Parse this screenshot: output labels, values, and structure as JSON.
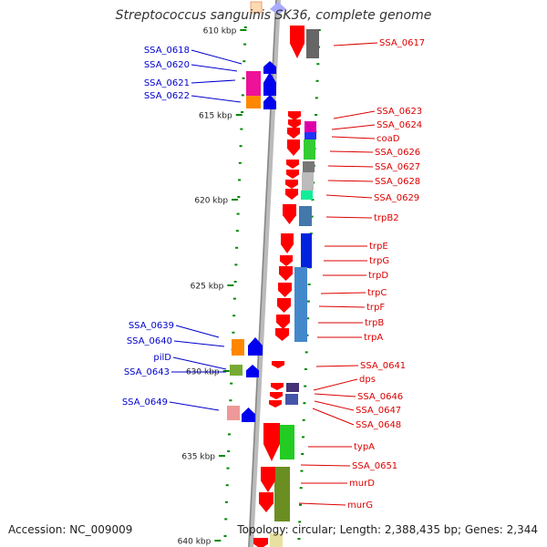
{
  "title": "Streptococcus sanguinis SK36, complete genome",
  "footer": {
    "accession": "Accession: NC_009009",
    "topology": "Topology: circular; Length: 2,388,435 bp; Genes: 2,344"
  },
  "colors": {
    "forward_label": "#0000cc",
    "reverse_label": "#dd0000",
    "backbone": "#999999",
    "tick": "#008800",
    "forward_arrow": "#0000ee",
    "reverse_arrow": "#ff0000"
  },
  "scale_labels": [
    "610 kbp",
    "615 kbp",
    "620 kbp",
    "625 kbp",
    "630 kbp",
    "635 kbp",
    "640 kbp"
  ],
  "forward_genes": [
    "SSA_0618",
    "SSA_0620",
    "SSA_0621",
    "SSA_0622",
    "SSA_0639",
    "SSA_0640",
    "pilD",
    "SSA_0643",
    "SSA_0649"
  ],
  "reverse_genes": [
    "SSA_0617",
    "SSA_0623",
    "SSA_0624",
    "coaD",
    "SSA_0626",
    "SSA_0627",
    "SSA_0628",
    "SSA_0629",
    "trpB2",
    "trpE",
    "trpG",
    "trpD",
    "trpC",
    "trpF",
    "trpB",
    "trpA",
    "SSA_0641",
    "dps",
    "SSA_0646",
    "SSA_0647",
    "SSA_0648",
    "typA",
    "SSA_0651",
    "murD",
    "murG"
  ]
}
